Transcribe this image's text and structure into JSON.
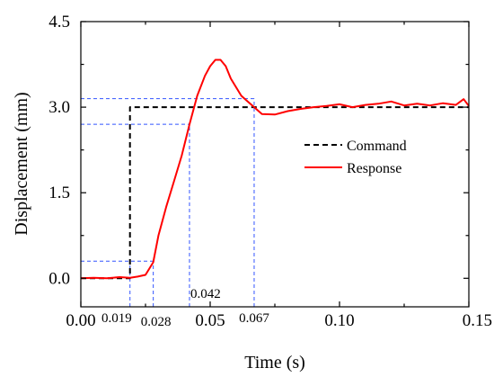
{
  "chart_data": {
    "type": "line",
    "xlabel": "Time (s)",
    "ylabel": "Displacement (mm)",
    "xlim": [
      0,
      0.15
    ],
    "ylim": [
      -0.5,
      4.5
    ],
    "x_ticks": [
      {
        "value": 0.0,
        "label": "0.00"
      },
      {
        "value": 0.05,
        "label": "0.05"
      },
      {
        "value": 0.1,
        "label": "0.10"
      },
      {
        "value": 0.15,
        "label": "0.15"
      }
    ],
    "y_ticks": [
      {
        "value": 0.0,
        "label": "0.0"
      },
      {
        "value": 1.5,
        "label": "1.5"
      },
      {
        "value": 3.0,
        "label": "3.0"
      },
      {
        "value": 4.5,
        "label": "4.5"
      }
    ],
    "grid": false,
    "legend_position": "right-middle",
    "series": [
      {
        "name": "Command",
        "color": "#000000",
        "style": "dashed",
        "x": [
          0,
          0.019,
          0.019,
          0.15
        ],
        "y": [
          0,
          0,
          3.0,
          3.0
        ]
      },
      {
        "name": "Response",
        "color": "#ff0000",
        "style": "solid",
        "x": [
          0,
          0.005,
          0.01,
          0.015,
          0.019,
          0.022,
          0.025,
          0.028,
          0.03,
          0.033,
          0.036,
          0.039,
          0.042,
          0.045,
          0.048,
          0.05,
          0.052,
          0.054,
          0.056,
          0.058,
          0.06,
          0.062,
          0.064,
          0.067,
          0.07,
          0.075,
          0.08,
          0.085,
          0.09,
          0.095,
          0.1,
          0.105,
          0.11,
          0.115,
          0.12,
          0.125,
          0.13,
          0.135,
          0.14,
          0.145,
          0.148,
          0.15
        ],
        "y": [
          0.0,
          0.01,
          0.0,
          0.02,
          0.01,
          0.03,
          0.06,
          0.28,
          0.75,
          1.25,
          1.7,
          2.15,
          2.7,
          3.2,
          3.55,
          3.72,
          3.83,
          3.83,
          3.72,
          3.5,
          3.35,
          3.2,
          3.12,
          3.0,
          2.88,
          2.87,
          2.93,
          2.97,
          3.0,
          3.02,
          3.05,
          3.0,
          3.04,
          3.06,
          3.1,
          3.03,
          3.06,
          3.03,
          3.07,
          3.04,
          3.14,
          3.02
        ]
      }
    ],
    "annotations": {
      "color": "#3355ff",
      "guides": [
        {
          "type": "horizontal",
          "y": 0.3,
          "x_from": 0,
          "x_to": 0.028
        },
        {
          "type": "horizontal",
          "y": 2.7,
          "x_from": 0,
          "x_to": 0.042
        },
        {
          "type": "horizontal",
          "y": 3.15,
          "x_from": 0,
          "x_to": 0.067
        },
        {
          "type": "vertical",
          "x": 0.019,
          "y_from": -0.5,
          "y_to": 0.3
        },
        {
          "type": "vertical",
          "x": 0.028,
          "y_from": -0.5,
          "y_to": 0.3
        },
        {
          "type": "vertical",
          "x": 0.042,
          "y_from": -0.5,
          "y_to": 2.7
        },
        {
          "type": "vertical",
          "x": 0.067,
          "y_from": -0.5,
          "y_to": 3.15
        }
      ],
      "labels": [
        {
          "text": "0.019",
          "x": 0.019,
          "placement": "below-axis-left"
        },
        {
          "text": "0.028",
          "x": 0.028,
          "placement": "below-axis-right"
        },
        {
          "text": "0.042",
          "x": 0.042,
          "placement": "inside-bottom"
        },
        {
          "text": "0.067",
          "x": 0.067,
          "placement": "below-axis-center"
        }
      ]
    }
  }
}
